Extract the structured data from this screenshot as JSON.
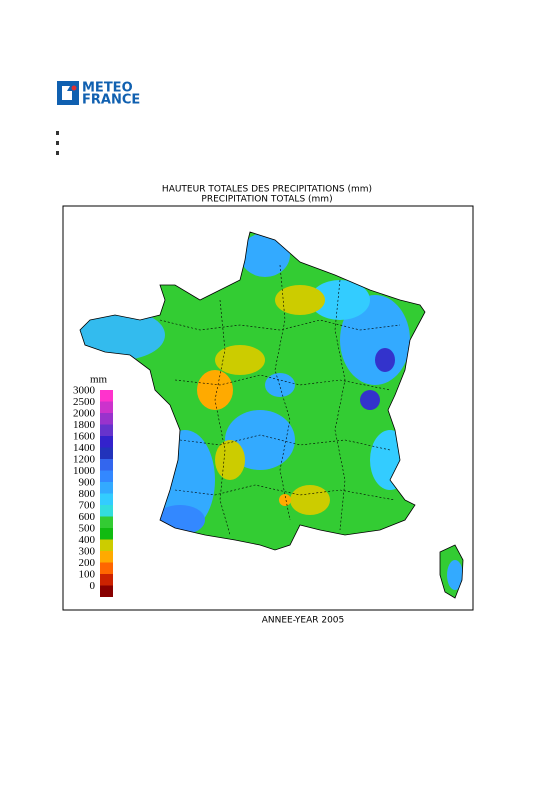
{
  "logo": {
    "line1": "METEO",
    "line2": "FRANCE"
  },
  "title": {
    "line1": "HAUTEUR TOTALES DES PRECIPITATIONS (mm)",
    "line2": "PRECIPITATION TOTALS (mm)"
  },
  "legend": {
    "unit": "mm",
    "items": [
      {
        "label": "3000",
        "color": "#ff33cc"
      },
      {
        "label": "2500",
        "color": "#cc33cc"
      },
      {
        "label": "2000",
        "color": "#9933cc"
      },
      {
        "label": "1800",
        "color": "#6633cc"
      },
      {
        "label": "1600",
        "color": "#3322cc"
      },
      {
        "label": "1400",
        "color": "#2233bb"
      },
      {
        "label": "1200",
        "color": "#3366ee"
      },
      {
        "label": "1000",
        "color": "#3388ff"
      },
      {
        "label": "900",
        "color": "#33aaff"
      },
      {
        "label": "800",
        "color": "#33ccff"
      },
      {
        "label": "700",
        "color": "#33dddd"
      },
      {
        "label": "600",
        "color": "#33cc33"
      },
      {
        "label": "500",
        "color": "#11bb11"
      },
      {
        "label": "400",
        "color": "#cccc00"
      },
      {
        "label": "300",
        "color": "#ffaa00"
      },
      {
        "label": "200",
        "color": "#ff6600"
      },
      {
        "label": "100",
        "color": "#cc2200"
      },
      {
        "label": "0",
        "color": "#880000"
      }
    ]
  },
  "footer": "ANNEE-YEAR 2005"
}
